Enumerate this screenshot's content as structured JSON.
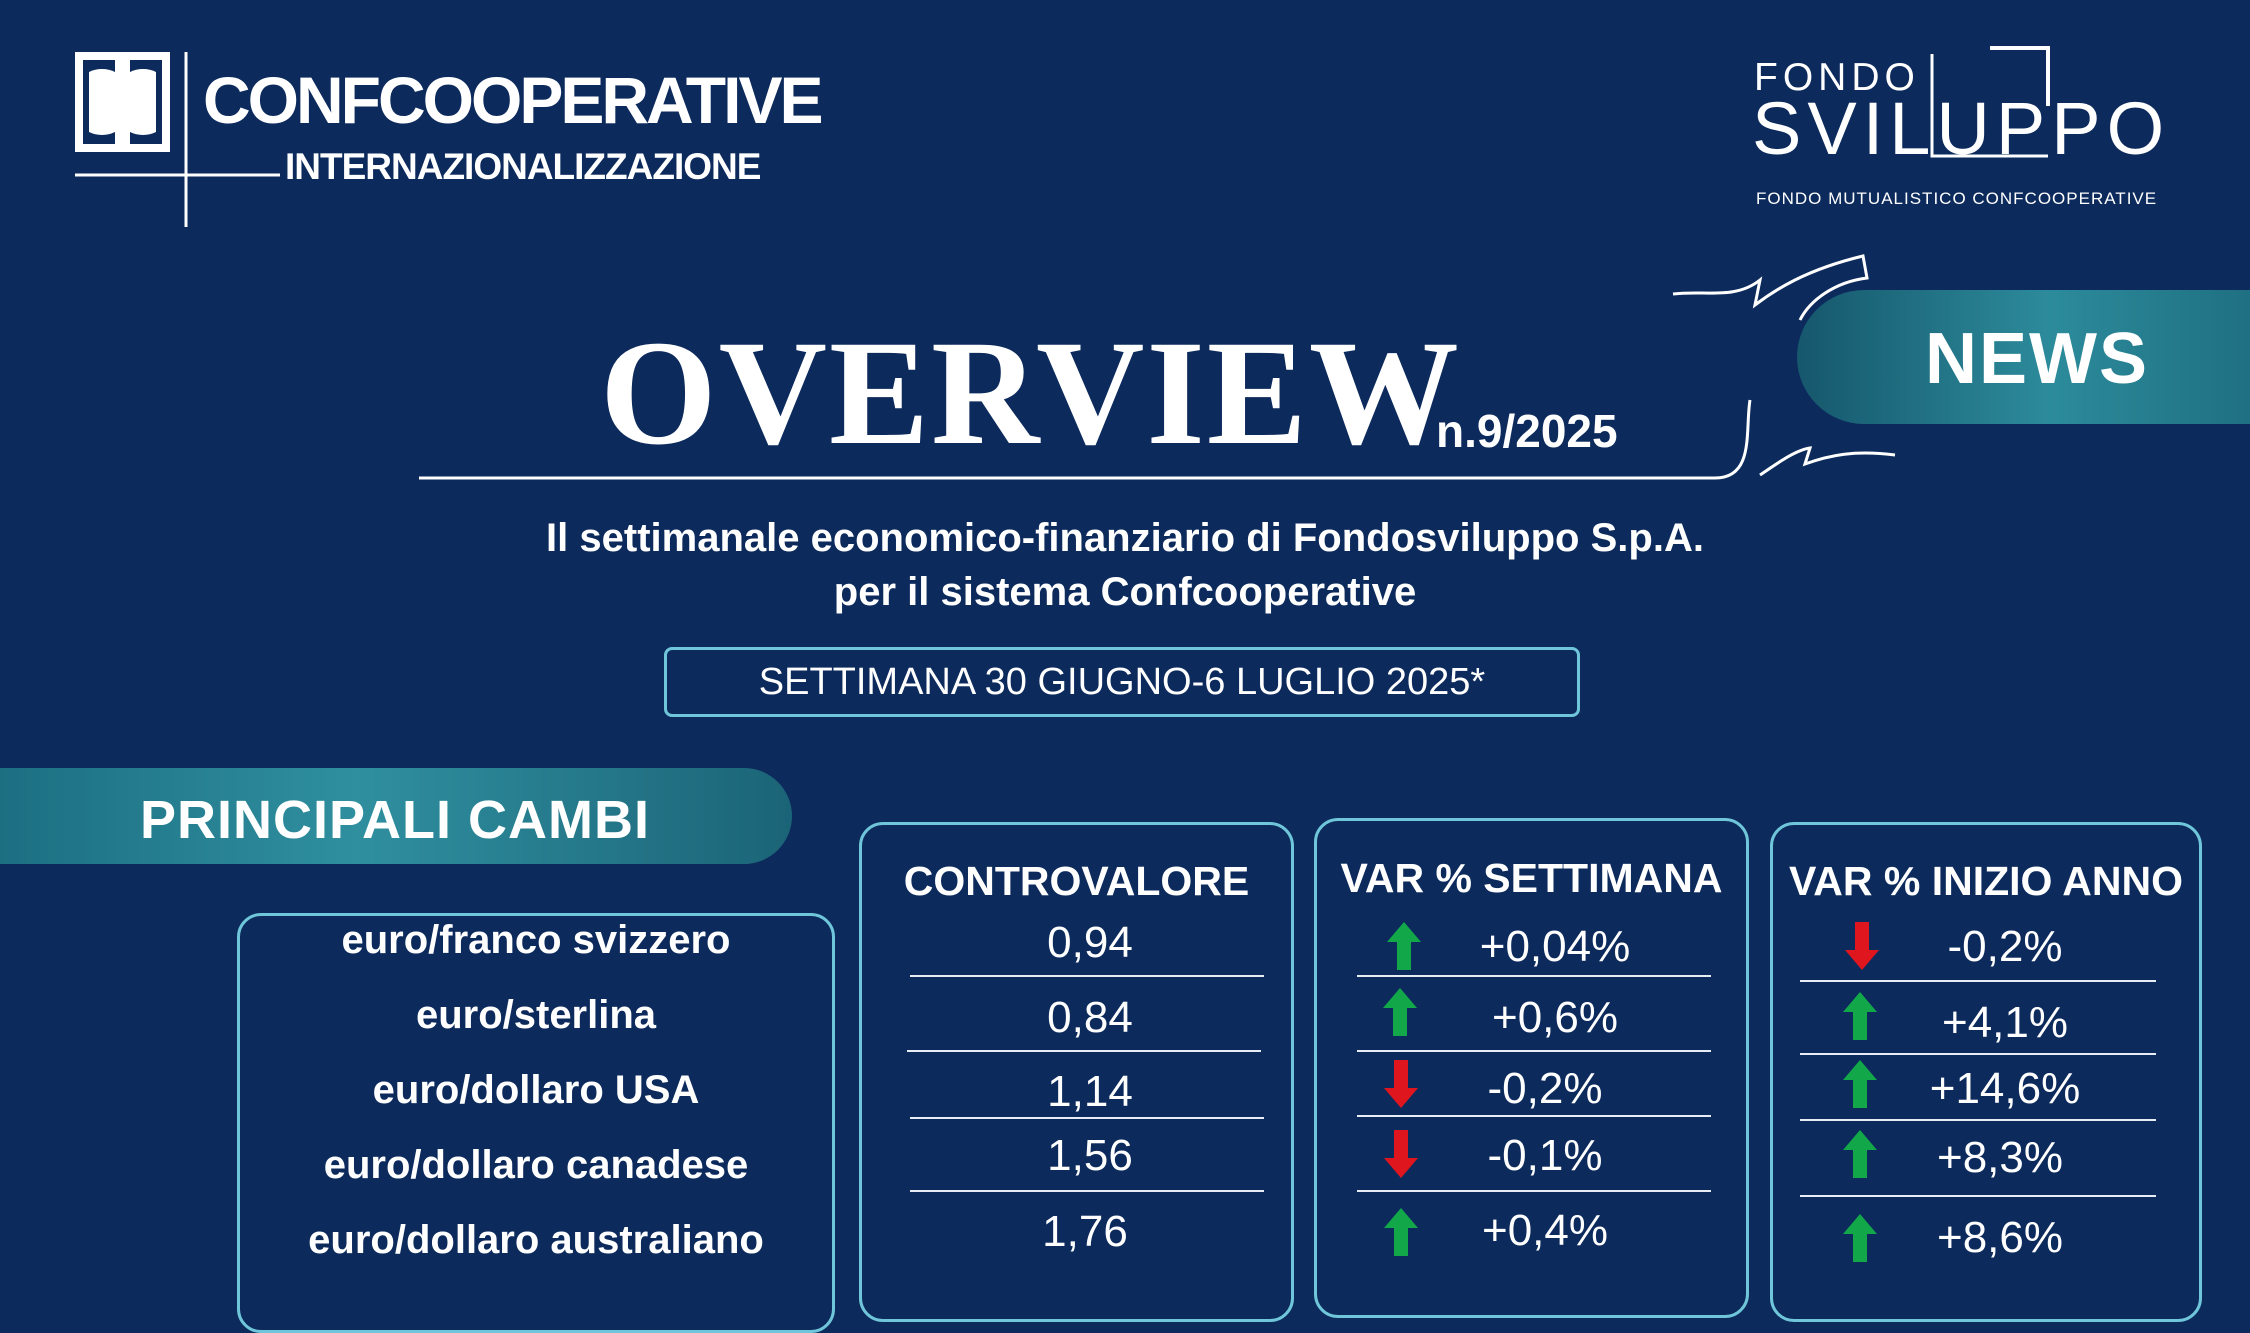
{
  "header": {
    "confcooperative_title": "CONFCOOPERATIVE",
    "confcooperative_subtitle": "INTERNAZIONALIZZAZIONE",
    "fondo_label": "FONDO",
    "sviluppo_label": "SVILUPPO",
    "fondo_tagline": "FONDO MUTUALISTICO CONFCOOPERATIVE"
  },
  "title": {
    "main": "OVERVIEW",
    "issue": "n.9/2025",
    "badge": "NEWS",
    "subtitle_line1": "Il settimanale economico-finanziario di Fondosviluppo S.p.A.",
    "subtitle_line2": "per il sistema Confcooperative",
    "week": "SETTIMANA 30 GIUGNO-6 LUGLIO 2025*"
  },
  "section": {
    "label": "PRINCIPALI CAMBI"
  },
  "table": {
    "headers": {
      "value": "CONTROVALORE",
      "week": "VAR % SETTIMANA",
      "ytd": "VAR % INIZIO ANNO"
    },
    "rows": [
      {
        "pair": "euro/franco svizzero",
        "value": "0,94",
        "week": "+0,04%",
        "week_dir": "up",
        "ytd": "-0,2%",
        "ytd_dir": "down"
      },
      {
        "pair": "euro/sterlina",
        "value": "0,84",
        "week": "+0,6%",
        "week_dir": "up",
        "ytd": "+4,1%",
        "ytd_dir": "up"
      },
      {
        "pair": "euro/dollaro USA",
        "value": "1,14",
        "week": "-0,2%",
        "week_dir": "down",
        "ytd": "+14,6%",
        "ytd_dir": "up"
      },
      {
        "pair": "euro/dollaro canadese",
        "value": "1,56",
        "week": "-0,1%",
        "week_dir": "down",
        "ytd": "+8,3%",
        "ytd_dir": "up"
      },
      {
        "pair": "euro/dollaro australiano",
        "value": "1,76",
        "week": "+0,4%",
        "week_dir": "up",
        "ytd": "+8,6%",
        "ytd_dir": "up"
      }
    ]
  },
  "colors": {
    "background": "#0c2a5c",
    "accent_teal": "#2c8b9b",
    "box_border": "#6fc6da",
    "arrow_up": "#12a84a",
    "arrow_down": "#e0161e"
  }
}
